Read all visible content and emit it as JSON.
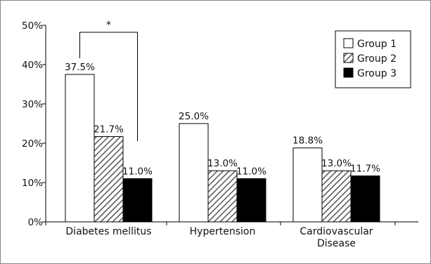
{
  "chart_data": {
    "type": "bar",
    "categories": [
      "Diabetes mellitus",
      "Hypertension",
      "Cardiovascular Disease"
    ],
    "category_lines": [
      [
        "Diabetes mellitus"
      ],
      [
        "Hypertension"
      ],
      [
        "Cardiovascular",
        "Disease"
      ]
    ],
    "series": [
      {
        "name": "Group 1",
        "values": [
          37.5,
          25.0,
          18.8
        ],
        "labels": [
          "37.5%",
          "25.0%",
          "18.8%"
        ],
        "fill": "white"
      },
      {
        "name": "Group 2",
        "values": [
          21.7,
          13.0,
          13.0
        ],
        "labels": [
          "21.7%",
          "13.0%",
          "13.0%"
        ],
        "fill": "hatched"
      },
      {
        "name": "Group 3",
        "values": [
          11.0,
          11.0,
          11.7
        ],
        "labels": [
          "11.0%",
          "11.0%",
          "11.7%"
        ],
        "fill": "black"
      }
    ],
    "yticks": [
      0,
      10,
      20,
      30,
      40,
      50
    ],
    "ytick_labels": [
      "0%",
      "10%",
      "20%",
      "30%",
      "40%",
      "50%"
    ],
    "ylim": [
      0,
      50
    ],
    "title": "",
    "xlabel": "",
    "ylabel": "",
    "grid": false,
    "legend_position": "top-right",
    "annotations": [
      {
        "type": "significance-bracket",
        "category": "Diabetes mellitus",
        "from_series": "Group 1",
        "to_series": "Group 3",
        "label": "*"
      }
    ]
  },
  "colors": {
    "bar_outline": "#000000",
    "group1_fill": "#ffffff",
    "group2_hatch": "#555555",
    "group3_fill": "#000000"
  }
}
